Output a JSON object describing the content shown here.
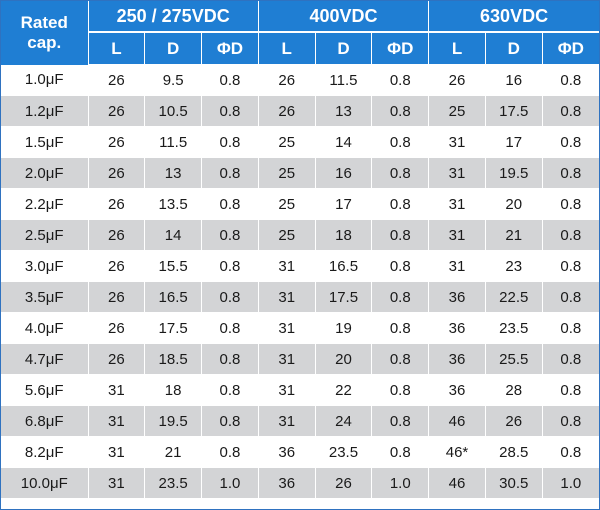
{
  "header": {
    "rated_label_line1": "Rated",
    "rated_label_line2": "cap.",
    "voltages": [
      "250 / 275VDC",
      "400VDC",
      "630VDC"
    ],
    "sub_columns": [
      "L",
      "D",
      "ΦD"
    ]
  },
  "rows": [
    [
      "1.0μF",
      "26",
      "9.5",
      "0.8",
      "26",
      "11.5",
      "0.8",
      "26",
      "16",
      "0.8"
    ],
    [
      "1.2μF",
      "26",
      "10.5",
      "0.8",
      "26",
      "13",
      "0.8",
      "25",
      "17.5",
      "0.8"
    ],
    [
      "1.5μF",
      "26",
      "11.5",
      "0.8",
      "25",
      "14",
      "0.8",
      "31",
      "17",
      "0.8"
    ],
    [
      "2.0μF",
      "26",
      "13",
      "0.8",
      "25",
      "16",
      "0.8",
      "31",
      "19.5",
      "0.8"
    ],
    [
      "2.2μF",
      "26",
      "13.5",
      "0.8",
      "25",
      "17",
      "0.8",
      "31",
      "20",
      "0.8"
    ],
    [
      "2.5μF",
      "26",
      "14",
      "0.8",
      "25",
      "18",
      "0.8",
      "31",
      "21",
      "0.8"
    ],
    [
      "3.0μF",
      "26",
      "15.5",
      "0.8",
      "31",
      "16.5",
      "0.8",
      "31",
      "23",
      "0.8"
    ],
    [
      "3.5μF",
      "26",
      "16.5",
      "0.8",
      "31",
      "17.5",
      "0.8",
      "36",
      "22.5",
      "0.8"
    ],
    [
      "4.0μF",
      "26",
      "17.5",
      "0.8",
      "31",
      "19",
      "0.8",
      "36",
      "23.5",
      "0.8"
    ],
    [
      "4.7μF",
      "26",
      "18.5",
      "0.8",
      "31",
      "20",
      "0.8",
      "36",
      "25.5",
      "0.8"
    ],
    [
      "5.6μF",
      "31",
      "18",
      "0.8",
      "31",
      "22",
      "0.8",
      "36",
      "28",
      "0.8"
    ],
    [
      "6.8μF",
      "31",
      "19.5",
      "0.8",
      "31",
      "24",
      "0.8",
      "46",
      "26",
      "0.8"
    ],
    [
      "8.2μF",
      "31",
      "21",
      "0.8",
      "36",
      "23.5",
      "0.8",
      "46*",
      "28.5",
      "0.8"
    ],
    [
      "10.0μF",
      "31",
      "23.5",
      "1.0",
      "36",
      "26",
      "1.0",
      "46",
      "30.5",
      "1.0"
    ]
  ],
  "colors": {
    "header_bg": "#1f7ed3",
    "stripe": "#d3d4d6",
    "border": "#2f72c0"
  }
}
